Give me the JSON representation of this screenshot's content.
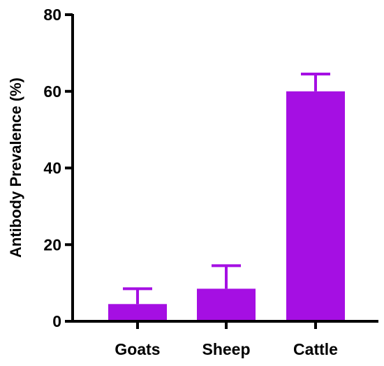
{
  "chart_data": {
    "type": "bar",
    "title": "",
    "xlabel": "",
    "ylabel": "Antibody Prevalence (%)",
    "categories": [
      "Goats",
      "Sheep",
      "Cattle"
    ],
    "values": [
      4.5,
      8.5,
      60
    ],
    "error_upper": [
      8.5,
      14.5,
      64.5
    ],
    "ylim": [
      0,
      80
    ],
    "yticks": [
      0,
      20,
      40,
      60,
      80
    ],
    "bar_color": "#a50fe3",
    "axis_color": "#000000",
    "grid": false
  }
}
